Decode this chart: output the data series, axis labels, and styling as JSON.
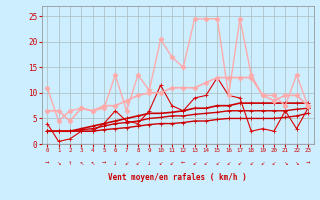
{
  "background_color": "#cceeff",
  "grid_color": "#aabbbb",
  "xlabel": "Vent moyen/en rafales ( km/h )",
  "xlabel_color": "#cc0000",
  "tick_color": "#cc0000",
  "arrow_color": "#cc0000",
  "ylim": [
    0,
    27
  ],
  "xlim": [
    -0.5,
    23.5
  ],
  "yticks": [
    0,
    5,
    10,
    15,
    20,
    25
  ],
  "xticks": [
    0,
    1,
    2,
    3,
    4,
    5,
    6,
    7,
    8,
    9,
    10,
    11,
    12,
    13,
    14,
    15,
    16,
    17,
    18,
    19,
    20,
    21,
    22,
    23
  ],
  "series": [
    {
      "comment": "dark red jagged line - main wind speed",
      "color": "#dd0000",
      "lw": 0.8,
      "marker": "+",
      "ms": 3.0,
      "data": [
        4.0,
        0.5,
        1.0,
        2.5,
        2.5,
        4.0,
        6.5,
        4.5,
        4.0,
        6.5,
        11.5,
        7.5,
        6.5,
        9.0,
        9.5,
        13.0,
        9.5,
        9.0,
        2.5,
        3.0,
        2.5,
        6.5,
        3.0,
        7.0
      ]
    },
    {
      "comment": "dark red smooth rising line 1 (lower)",
      "color": "#cc0000",
      "lw": 1.0,
      "marker": "+",
      "ms": 2.5,
      "data": [
        2.5,
        2.5,
        2.5,
        2.5,
        2.5,
        2.8,
        3.0,
        3.2,
        3.5,
        3.8,
        4.0,
        4.0,
        4.2,
        4.5,
        4.5,
        4.8,
        5.0,
        5.0,
        5.0,
        5.0,
        5.0,
        5.2,
        5.5,
        6.0
      ]
    },
    {
      "comment": "dark red smooth rising line 2",
      "color": "#cc0000",
      "lw": 1.0,
      "marker": "+",
      "ms": 2.5,
      "data": [
        2.5,
        2.5,
        2.5,
        2.8,
        3.0,
        3.5,
        4.0,
        4.2,
        4.5,
        5.0,
        5.2,
        5.5,
        5.5,
        5.8,
        6.0,
        6.2,
        6.5,
        6.5,
        6.5,
        6.5,
        6.5,
        6.5,
        6.8,
        7.0
      ]
    },
    {
      "comment": "dark red smooth rising line 3 (upper dark)",
      "color": "#cc0000",
      "lw": 1.2,
      "marker": "+",
      "ms": 2.5,
      "data": [
        2.5,
        2.5,
        2.5,
        3.0,
        3.5,
        4.0,
        4.5,
        5.0,
        5.5,
        6.0,
        6.0,
        6.2,
        6.5,
        7.0,
        7.0,
        7.5,
        7.5,
        8.0,
        8.0,
        8.0,
        8.0,
        8.0,
        8.0,
        8.0
      ]
    },
    {
      "comment": "light pink - gust line rising smooth",
      "color": "#ffaaaa",
      "lw": 1.2,
      "marker": "D",
      "ms": 2.5,
      "data": [
        6.5,
        6.5,
        4.5,
        7.0,
        6.5,
        7.5,
        7.5,
        8.5,
        9.5,
        10.0,
        10.0,
        11.0,
        11.0,
        11.0,
        12.0,
        13.0,
        13.0,
        13.0,
        13.0,
        9.5,
        8.5,
        9.5,
        9.5,
        7.5
      ]
    },
    {
      "comment": "light pink - high gust jagged",
      "color": "#ffaaaa",
      "lw": 1.0,
      "marker": "D",
      "ms": 2.5,
      "data": [
        11.0,
        4.5,
        6.5,
        7.0,
        6.5,
        7.0,
        13.5,
        6.5,
        13.5,
        10.5,
        20.5,
        17.0,
        15.0,
        24.5,
        24.5,
        24.5,
        9.5,
        24.5,
        13.5,
        9.5,
        9.5,
        7.5,
        13.5,
        7.5
      ]
    }
  ],
  "wind_arrows": [
    "→",
    "↘",
    "↑",
    "↖",
    "↖",
    "→",
    "↓",
    "↙",
    "↙",
    "↓",
    "↙",
    "↙",
    "←",
    "↙",
    "↙",
    "↙",
    "↙",
    "↙",
    "↙",
    "↙",
    "↙",
    "↘",
    "↘",
    "→"
  ]
}
